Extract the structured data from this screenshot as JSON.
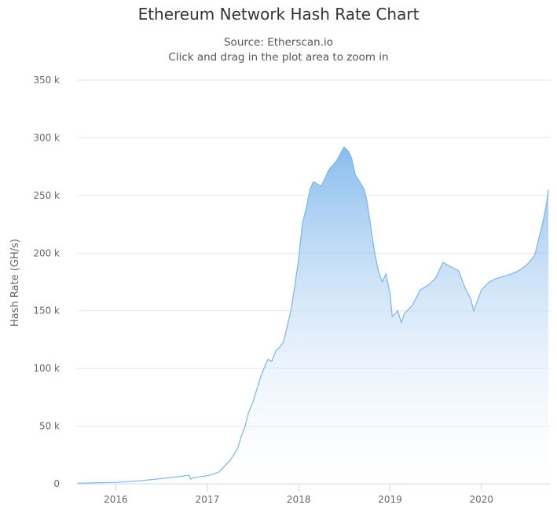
{
  "chart_data": {
    "type": "area",
    "title": "Ethereum Network Hash Rate Chart",
    "subtitle": "Source: Etherscan.io",
    "hint": "Click and drag in the plot area to zoom in",
    "xlabel": "",
    "ylabel": "Hash Rate (GH/s)",
    "ylim": [
      0,
      350000
    ],
    "y_ticks": [
      0,
      50000,
      100000,
      150000,
      200000,
      250000,
      300000,
      350000
    ],
    "y_tick_labels": [
      "0",
      "50 k",
      "100 k",
      "150 k",
      "200 k",
      "250 k",
      "300 k",
      "350 k"
    ],
    "x_ticks": [
      "2016",
      "2017",
      "2018",
      "2019",
      "2020"
    ],
    "xlim": [
      "2015-07-30",
      "2020-10-01"
    ],
    "grid": true,
    "legend": "none",
    "colors": {
      "line": "#7cb5ec",
      "fill_top": "#7cb5ec",
      "fill_bottom": "#ffffff"
    },
    "series": [
      {
        "x": [
          "2015-08-01",
          "2015-10-01",
          "2016-01-01",
          "2016-04-01",
          "2016-07-01",
          "2016-09-01",
          "2016-10-20",
          "2016-10-27",
          "2016-11-01",
          "2017-01-01",
          "2017-02-15",
          "2017-04-01",
          "2017-05-01",
          "2017-05-15",
          "2017-06-01",
          "2017-06-15",
          "2017-07-01",
          "2017-07-15",
          "2017-08-01",
          "2017-08-15",
          "2017-09-01",
          "2017-09-15",
          "2017-10-01",
          "2017-10-15",
          "2017-11-01",
          "2017-12-01",
          "2017-12-15",
          "2018-01-01",
          "2018-01-15",
          "2018-02-01",
          "2018-02-15",
          "2018-03-01",
          "2018-04-01",
          "2018-05-01",
          "2018-06-01",
          "2018-07-01",
          "2018-07-20",
          "2018-08-01",
          "2018-08-15",
          "2018-09-01",
          "2018-09-20",
          "2018-10-01",
          "2018-11-01",
          "2018-11-15",
          "2018-12-01",
          "2018-12-15",
          "2019-01-01",
          "2019-01-10",
          "2019-02-01",
          "2019-02-15",
          "2019-03-01",
          "2019-04-01",
          "2019-05-01",
          "2019-06-01",
          "2019-07-01",
          "2019-08-01",
          "2019-09-01",
          "2019-10-01",
          "2019-11-01",
          "2019-11-20",
          "2019-12-01",
          "2020-01-01",
          "2020-02-01",
          "2020-03-01",
          "2020-04-01",
          "2020-05-01",
          "2020-06-01",
          "2020-07-01",
          "2020-08-01",
          "2020-08-15",
          "2020-09-01",
          "2020-09-15",
          "2020-09-25"
        ],
        "y": [
          500,
          800,
          1200,
          2500,
          4500,
          6000,
          7500,
          4000,
          5000,
          7000,
          10000,
          20000,
          30000,
          40000,
          50000,
          62000,
          70000,
          80000,
          92000,
          100000,
          108000,
          106000,
          115000,
          118000,
          123000,
          150000,
          170000,
          195000,
          225000,
          240000,
          255000,
          262000,
          258000,
          272000,
          280000,
          292000,
          288000,
          282000,
          268000,
          262000,
          255000,
          245000,
          200000,
          185000,
          175000,
          182000,
          165000,
          145000,
          150000,
          140000,
          148000,
          155000,
          168000,
          172000,
          178000,
          192000,
          188000,
          185000,
          168000,
          160000,
          150000,
          168000,
          175000,
          178000,
          180000,
          182000,
          185000,
          190000,
          198000,
          210000,
          225000,
          240000,
          255000
        ]
      }
    ]
  }
}
